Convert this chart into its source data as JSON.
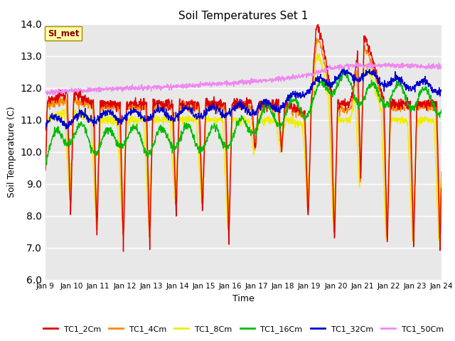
{
  "title": "Soil Temperatures Set 1",
  "xlabel": "Time",
  "ylabel": "Soil Temperature (C)",
  "ylim": [
    6.0,
    14.0
  ],
  "yticks": [
    6.0,
    7.0,
    8.0,
    9.0,
    10.0,
    11.0,
    12.0,
    13.0,
    14.0
  ],
  "xtick_labels": [
    "Jan 9",
    "Jan 10",
    "Jan 11",
    "Jan 12",
    "Jan 13",
    "Jan 14",
    "Jan 15",
    "Jan 16",
    "Jan 17",
    "Jan 18",
    "Jan 19",
    "Jan 20",
    "Jan 21",
    "Jan 22",
    "Jan 23",
    "Jan 24"
  ],
  "series_colors": {
    "TC1_2Cm": "#dd0000",
    "TC1_4Cm": "#ff8800",
    "TC1_8Cm": "#eeee00",
    "TC1_16Cm": "#00bb00",
    "TC1_32Cm": "#0000cc",
    "TC1_50Cm": "#ee88ee"
  },
  "series_order": [
    "TC1_8Cm",
    "TC1_4Cm",
    "TC1_2Cm",
    "TC1_16Cm",
    "TC1_32Cm",
    "TC1_50Cm"
  ],
  "legend_order": [
    "TC1_2Cm",
    "TC1_4Cm",
    "TC1_8Cm",
    "TC1_16Cm",
    "TC1_32Cm",
    "TC1_50Cm"
  ],
  "bg_color": "#e8e8e8",
  "fig_color": "#ffffff",
  "annotation_text": "SI_met",
  "linewidth": 1.0,
  "n_points": 1440,
  "days": 15
}
